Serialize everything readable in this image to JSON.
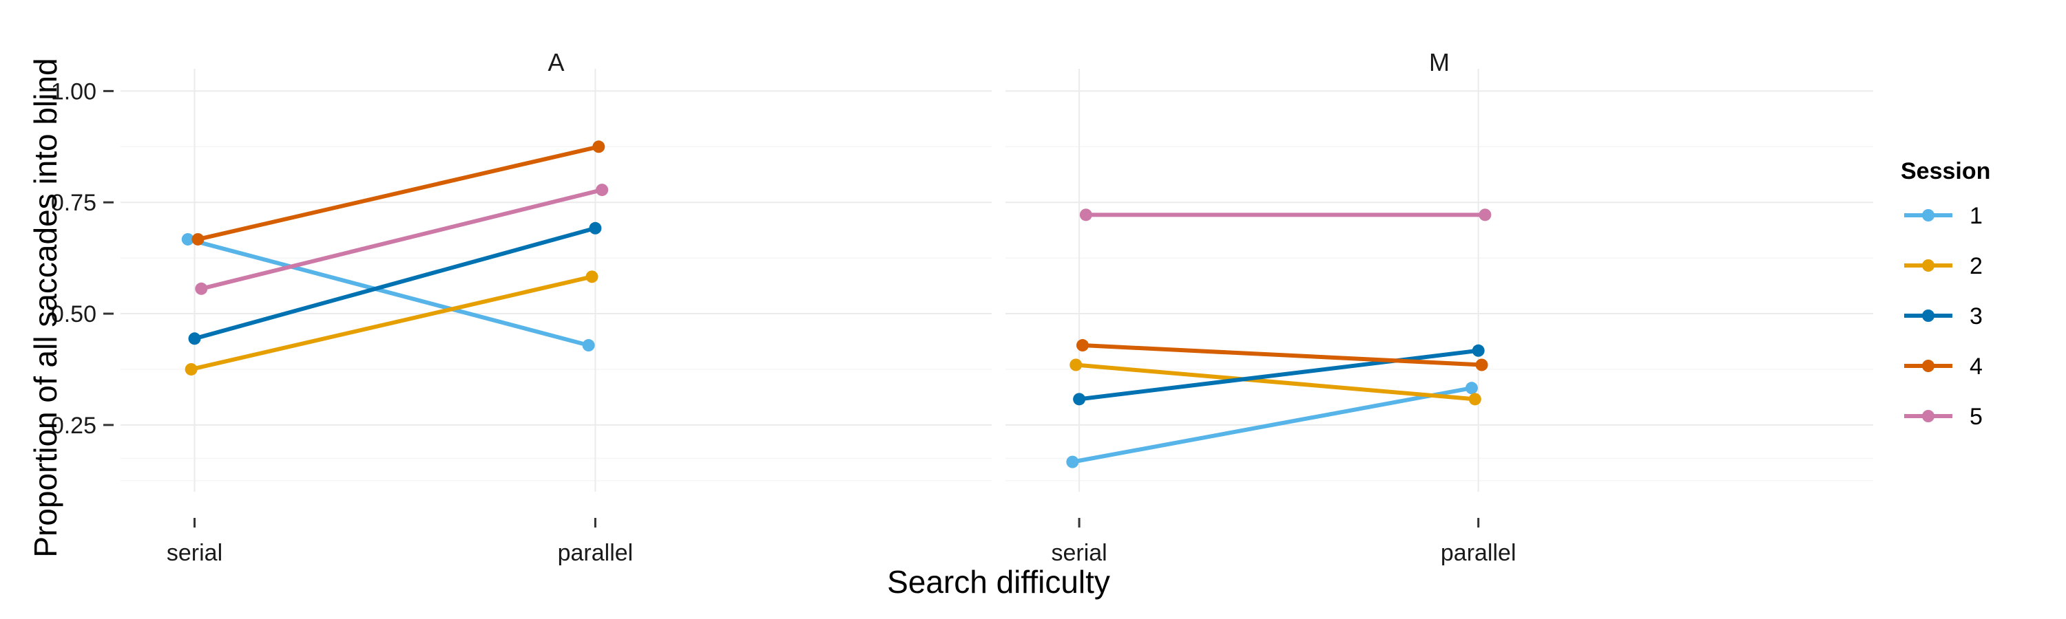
{
  "chart_data": {
    "type": "line",
    "xlabel": "Search difficulty",
    "ylabel": "Proportion of all saccades into blind",
    "categories": [
      "serial",
      "parallel"
    ],
    "ylim": [
      0.1,
      1.05
    ],
    "yticks": [
      0.25,
      0.5,
      0.75,
      1.0
    ],
    "ytick_labels": [
      "0.25",
      "0.50",
      "0.75",
      "1.00"
    ],
    "grid": true,
    "legend": {
      "title": "Session",
      "position": "right",
      "entries": [
        "1",
        "2",
        "3",
        "4",
        "5"
      ],
      "colors": [
        "#56B4E9",
        "#E69F00",
        "#0072B2",
        "#D55E00",
        "#CC79A7"
      ]
    },
    "panels": [
      {
        "title": "A",
        "series": [
          {
            "name": "1",
            "color": "#56B4E9",
            "values": [
              0.667,
              0.429
            ],
            "dodge": -0.12
          },
          {
            "name": "2",
            "color": "#E69F00",
            "values": [
              0.375,
              0.583
            ],
            "dodge": -0.06
          },
          {
            "name": "3",
            "color": "#0072B2",
            "values": [
              0.444,
              0.692
            ],
            "dodge": 0.0
          },
          {
            "name": "4",
            "color": "#D55E00",
            "values": [
              0.667,
              0.875
            ],
            "dodge": 0.06
          },
          {
            "name": "5",
            "color": "#CC79A7",
            "values": [
              0.556,
              0.778
            ],
            "dodge": 0.12
          }
        ]
      },
      {
        "title": "M",
        "series": [
          {
            "name": "1",
            "color": "#56B4E9",
            "values": [
              0.167,
              0.333
            ],
            "dodge": -0.12
          },
          {
            "name": "2",
            "color": "#E69F00",
            "values": [
              0.385,
              0.308
            ],
            "dodge": -0.06
          },
          {
            "name": "3",
            "color": "#0072B2",
            "values": [
              0.308,
              0.417
            ],
            "dodge": 0.0
          },
          {
            "name": "4",
            "color": "#D55E00",
            "values": [
              0.429,
              0.385
            ],
            "dodge": 0.06
          },
          {
            "name": "5",
            "color": "#CC79A7",
            "values": [
              0.722,
              0.722
            ],
            "dodge": 0.12
          }
        ]
      }
    ]
  }
}
